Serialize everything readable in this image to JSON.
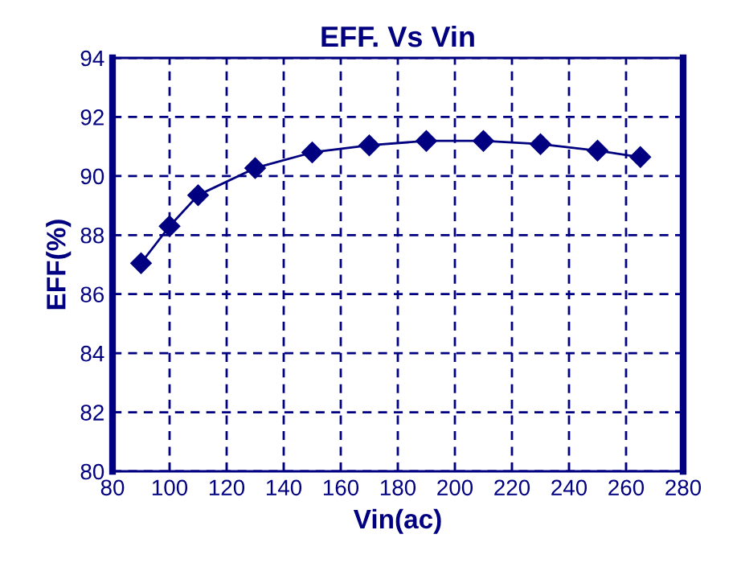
{
  "chart_data": {
    "type": "line",
    "title": "EFF. Vs Vin",
    "xlabel": "Vin(ac)",
    "ylabel": "EFF(%)",
    "x": [
      90,
      100,
      110,
      130,
      150,
      170,
      190,
      210,
      230,
      250,
      265
    ],
    "series": [
      {
        "color": "#000080",
        "values": [
          87.05,
          88.3,
          89.35,
          90.27,
          90.8,
          91.04,
          91.19,
          91.19,
          91.08,
          90.86,
          90.64
        ]
      }
    ],
    "xlim": [
      80,
      280
    ],
    "xticks": [
      80,
      100,
      120,
      140,
      160,
      180,
      200,
      220,
      240,
      260,
      280
    ],
    "ylim": [
      80,
      94
    ],
    "yticks": [
      80,
      82,
      84,
      86,
      88,
      90,
      92,
      94
    ],
    "grid": true,
    "marker": "diamond",
    "line_style": "solid",
    "legend": false
  }
}
